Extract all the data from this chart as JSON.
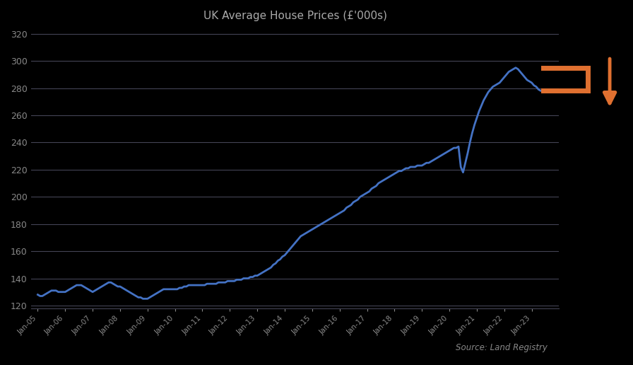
{
  "title": "UK Average House Prices (£'000s)",
  "source_text": "Source: Land Registry",
  "background_color": "#000000",
  "plot_bg_color": "#000000",
  "line_color": "#4472c4",
  "line_width": 2.0,
  "grid_color": "#444455",
  "title_color": "#aaaaaa",
  "tick_color": "#888888",
  "arrow_color": "#e07030",
  "ylim_min": 120,
  "ylim_max": 325,
  "ytick_step": 20,
  "x_tick_labels": [
    "Jan-05",
    "Jan-06",
    "Jan-07",
    "Jan-08",
    "Jan-09",
    "Jan-10",
    "Jan-11",
    "Jan-12",
    "Jan-13",
    "Jan-14",
    "Jan-15",
    "Jan-16",
    "Jan-17",
    "Jan-18",
    "Jan-19",
    "Jan-20",
    "Jan-21",
    "Jan-22",
    "Jan-23"
  ],
  "prices": [
    128,
    127,
    127,
    128,
    129,
    130,
    131,
    131,
    131,
    130,
    130,
    130,
    130,
    131,
    132,
    133,
    134,
    135,
    135,
    135,
    134,
    133,
    132,
    131,
    130,
    131,
    132,
    133,
    134,
    135,
    136,
    137,
    137,
    136,
    135,
    134,
    134,
    133,
    132,
    131,
    130,
    129,
    128,
    127,
    126,
    126,
    125,
    125,
    125,
    126,
    127,
    128,
    129,
    130,
    131,
    132,
    132,
    132,
    132,
    132,
    132,
    132,
    133,
    133,
    134,
    134,
    135,
    135,
    135,
    135,
    135,
    135,
    135,
    135,
    136,
    136,
    136,
    136,
    136,
    137,
    137,
    137,
    137,
    138,
    138,
    138,
    138,
    139,
    139,
    139,
    140,
    140,
    140,
    141,
    141,
    142,
    142,
    143,
    144,
    145,
    146,
    147,
    148,
    150,
    151,
    153,
    154,
    156,
    157,
    159,
    161,
    163,
    165,
    167,
    169,
    171,
    172,
    173,
    174,
    175,
    176,
    177,
    178,
    179,
    180,
    181,
    182,
    183,
    184,
    185,
    186,
    187,
    188,
    189,
    190,
    192,
    193,
    194,
    196,
    197,
    198,
    200,
    201,
    202,
    203,
    204,
    206,
    207,
    208,
    210,
    211,
    212,
    213,
    214,
    215,
    216,
    217,
    218,
    219,
    219,
    220,
    221,
    221,
    222,
    222,
    222,
    223,
    223,
    223,
    224,
    225,
    225,
    226,
    227,
    228,
    229,
    230,
    231,
    232,
    233,
    234,
    235,
    236,
    236,
    237,
    222,
    218,
    225,
    232,
    240,
    247,
    253,
    258,
    263,
    267,
    271,
    274,
    277,
    279,
    281,
    282,
    283,
    284,
    286,
    288,
    290,
    292,
    293,
    294,
    295,
    294,
    292,
    290,
    288,
    286,
    285,
    284,
    282,
    281,
    279,
    278,
    278
  ]
}
